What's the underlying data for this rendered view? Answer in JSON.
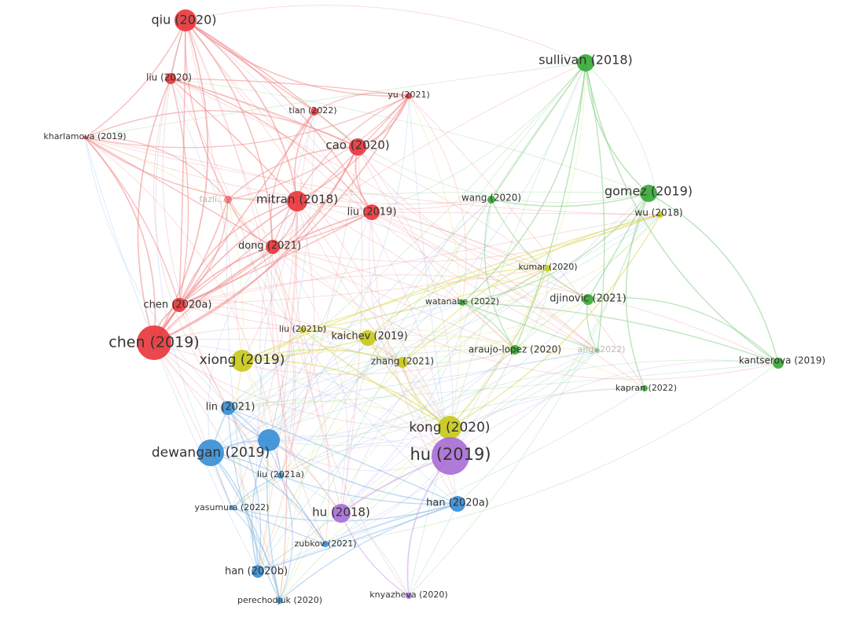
{
  "clusters": {
    "red": {
      "color": "#e8383d",
      "edge": "#f08a8a"
    },
    "yellow": {
      "color": "#c9c91c",
      "edge": "#dada5a"
    },
    "green": {
      "color": "#3aaa3a",
      "edge": "#86cf86"
    },
    "blue": {
      "color": "#3a8fd6",
      "edge": "#8cbde8"
    },
    "purple": {
      "color": "#a96fd6",
      "edge": "#c8a4e8"
    }
  },
  "nodes": [
    {
      "id": "qiu2020",
      "label": "qiu (2020)",
      "cluster": "red",
      "weight": 5
    },
    {
      "id": "liu2020",
      "label": "liu (2020)",
      "cluster": "red",
      "weight": 2
    },
    {
      "id": "kharlamova2019",
      "label": "kharlamova (2019)",
      "cluster": "red",
      "weight": 1
    },
    {
      "id": "tian2022",
      "label": "tian (2022)",
      "cluster": "red",
      "weight": 1
    },
    {
      "id": "yu2021",
      "label": "yu (2021)",
      "cluster": "red",
      "weight": 1
    },
    {
      "id": "cao2020",
      "label": "cao (2020)",
      "cluster": "red",
      "weight": 4
    },
    {
      "id": "fazli",
      "label": "fazli...",
      "cluster": "red",
      "weight": 1,
      "faded": true
    },
    {
      "id": "mitran2018",
      "label": "mitran (2018)",
      "cluster": "red",
      "weight": 5
    },
    {
      "id": "liu2019",
      "label": "liu (2019)",
      "cluster": "red",
      "weight": 3
    },
    {
      "id": "dong2021",
      "label": "dong (2021)",
      "cluster": "red",
      "weight": 3
    },
    {
      "id": "chen2020a",
      "label": "chen (2020a)",
      "cluster": "red",
      "weight": 3
    },
    {
      "id": "chen2019",
      "label": "chen (2019)",
      "cluster": "red",
      "weight": 8
    },
    {
      "id": "liu2021b",
      "label": "liu (2021b)",
      "cluster": "yellow",
      "weight": 1
    },
    {
      "id": "kaichev2019",
      "label": "kaichev (2019)",
      "cluster": "yellow",
      "weight": 3
    },
    {
      "id": "xiong2019",
      "label": "xiong (2019)",
      "cluster": "yellow",
      "weight": 5
    },
    {
      "id": "zhang2021",
      "label": "zhang (2021)",
      "cluster": "yellow",
      "weight": 2
    },
    {
      "id": "kong2020",
      "label": "kong (2020)",
      "cluster": "yellow",
      "weight": 5
    },
    {
      "id": "wu2018",
      "label": "wu (2018)",
      "cluster": "yellow",
      "weight": 1
    },
    {
      "id": "kumar2020",
      "label": "kumar (2020)",
      "cluster": "yellow",
      "weight": 1
    },
    {
      "id": "sullivan2018",
      "label": "sullivan (2018)",
      "cluster": "green",
      "weight": 4
    },
    {
      "id": "gomez2019",
      "label": "gomez (2019)",
      "cluster": "green",
      "weight": 4
    },
    {
      "id": "wang2020",
      "label": "wang (2020)",
      "cluster": "green",
      "weight": 1
    },
    {
      "id": "watanabe2022",
      "label": "watanabe (2022)",
      "cluster": "green",
      "weight": 1
    },
    {
      "id": "djinovic2021",
      "label": "djinovic (2021)",
      "cluster": "green",
      "weight": 2
    },
    {
      "id": "araujolopez2020",
      "label": "araujo-lopez (2020)",
      "cluster": "green",
      "weight": 2
    },
    {
      "id": "zhang2022",
      "label": "ang (2022)",
      "cluster": "green",
      "weight": 1,
      "faded": true
    },
    {
      "id": "kantserova2019",
      "label": "kantserova (2019)",
      "cluster": "green",
      "weight": 2
    },
    {
      "id": "kapran2022",
      "label": "kapran (2022)",
      "cluster": "green",
      "weight": 1
    },
    {
      "id": "lin2021",
      "label": "lin (2021)",
      "cluster": "blue",
      "weight": 2
    },
    {
      "id": "dewangan2019",
      "label": "dewangan (2019)",
      "cluster": "blue",
      "weight": 6
    },
    {
      "id": "bluenode",
      "label": "",
      "cluster": "blue",
      "weight": 5
    },
    {
      "id": "liu2021a",
      "label": "liu (2021a)",
      "cluster": "blue",
      "weight": 1
    },
    {
      "id": "yasumura2022",
      "label": "yasumura (2022)",
      "cluster": "blue",
      "weight": 1
    },
    {
      "id": "han2020a",
      "label": "han (2020a)",
      "cluster": "blue",
      "weight": 3
    },
    {
      "id": "han2020b",
      "label": "han (2020b)",
      "cluster": "blue",
      "weight": 2
    },
    {
      "id": "zubkov2021",
      "label": "zubkov (2021)",
      "cluster": "blue",
      "weight": 1
    },
    {
      "id": "perechodjuk2020",
      "label": "perechodjuk (2020)",
      "cluster": "blue",
      "weight": 1
    },
    {
      "id": "hu2019",
      "label": "hu (2019)",
      "cluster": "purple",
      "weight": 10
    },
    {
      "id": "hu2018",
      "label": "hu (2018)",
      "cluster": "purple",
      "weight": 4
    },
    {
      "id": "knyazheva2020",
      "label": "knyazheva (2020)",
      "cluster": "purple",
      "weight": 1
    }
  ]
}
